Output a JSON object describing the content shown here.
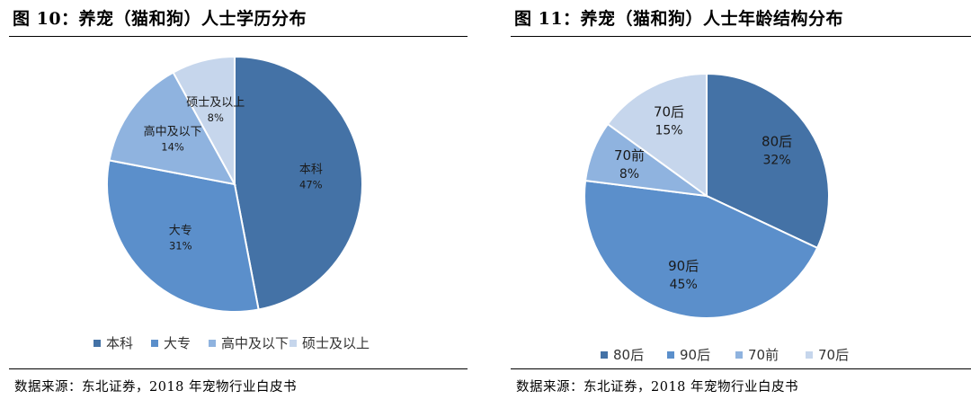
{
  "charts": [
    {
      "title": "图 10：养宠（猫和狗）人士学历分布",
      "source": "数据来源：东北证券，2018 年宠物行业白皮书"
    },
    {
      "title": "图 11：养宠（猫和狗）人士年龄结构分布",
      "source": "数据来源：东北证券，2018 年宠物行业白皮书"
    }
  ],
  "chart_data": [
    {
      "type": "pie",
      "title": "图 10：养宠（猫和狗）人士学历分布",
      "labels": [
        "本科",
        "大专",
        "高中及以下",
        "硕士及以上"
      ],
      "values": [
        47,
        31,
        14,
        8
      ],
      "value_labels": [
        "47%",
        "31%",
        "14%",
        "8%"
      ],
      "colors": [
        "#4472a6",
        "#5b8fcb",
        "#8fb3df",
        "#c6d6ec"
      ],
      "legend": "bottom"
    },
    {
      "type": "pie",
      "title": "图 11：养宠（猫和狗）人士年龄结构分布",
      "labels": [
        "80后",
        "90后",
        "70前",
        "70后"
      ],
      "values": [
        32,
        45,
        8,
        15
      ],
      "value_labels": [
        "32%",
        "45%",
        "8%",
        "15%"
      ],
      "colors": [
        "#4472a6",
        "#5b8fcb",
        "#8fb3df",
        "#c6d6ec"
      ],
      "legend": "bottom"
    }
  ]
}
